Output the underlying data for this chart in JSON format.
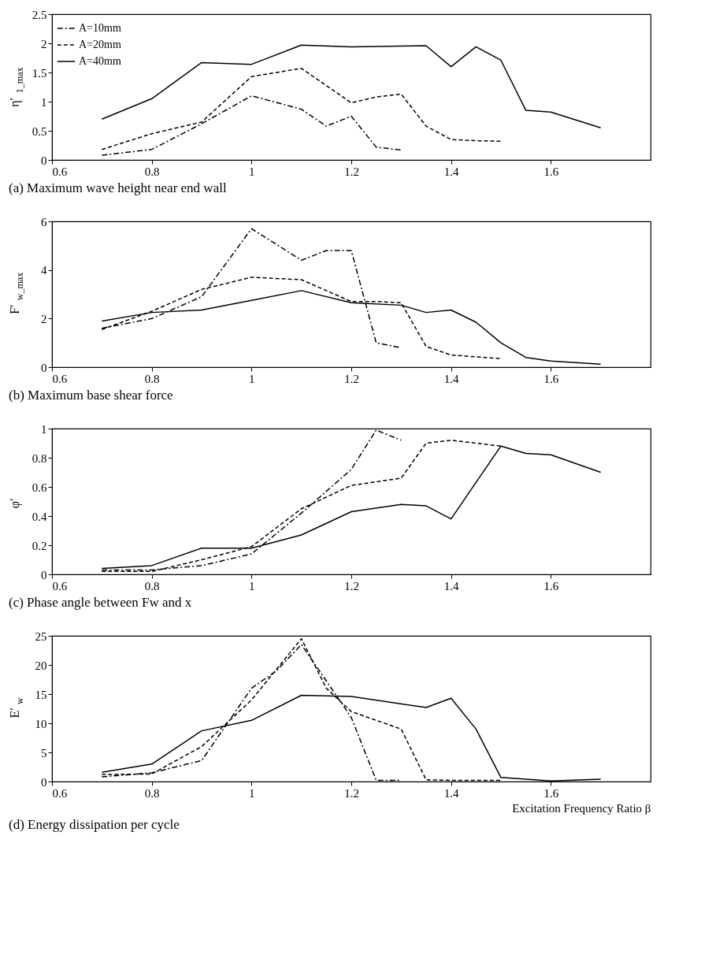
{
  "chart_data": [
    {
      "type": "line",
      "title": "(a) Maximum wave height near end wall",
      "ylabel": "η′$_{1_max}$",
      "xlim": [
        0.6,
        1.8
      ],
      "xticks": [
        0.6,
        0.8,
        1,
        1.2,
        1.4,
        1.6
      ],
      "ylim": [
        0,
        2.5
      ],
      "yticks": [
        0,
        0.5,
        1,
        1.5,
        2,
        2.5
      ],
      "legend": "top left",
      "grid": false,
      "series": [
        {
          "name": "A=10mm",
          "color": "#000000",
          "line_style": "dashdot",
          "x": [
            0.7,
            0.8,
            0.9,
            1.0,
            1.1,
            1.15,
            1.2,
            1.25,
            1.3
          ],
          "values": [
            0.08,
            0.18,
            0.62,
            1.1,
            0.87,
            0.58,
            0.75,
            0.22,
            0.17
          ]
        },
        {
          "name": "A=20mm",
          "color": "#000000",
          "line_style": "dashed",
          "x": [
            0.7,
            0.8,
            0.9,
            1.0,
            1.1,
            1.2,
            1.25,
            1.3,
            1.35,
            1.4,
            1.45,
            1.5
          ],
          "values": [
            0.18,
            0.45,
            0.65,
            1.43,
            1.57,
            0.98,
            1.08,
            1.13,
            0.58,
            0.35,
            0.33,
            0.32
          ]
        },
        {
          "name": "A=40mm",
          "color": "#000000",
          "line_style": "solid",
          "x": [
            0.7,
            0.8,
            0.9,
            1.0,
            1.1,
            1.2,
            1.35,
            1.4,
            1.45,
            1.5,
            1.55,
            1.6,
            1.7
          ],
          "values": [
            0.7,
            1.05,
            1.67,
            1.64,
            1.97,
            1.94,
            1.96,
            1.6,
            1.94,
            1.71,
            0.85,
            0.82,
            0.55
          ]
        }
      ]
    },
    {
      "type": "line",
      "title": "(b) Maximum base shear force",
      "ylabel": "F′$_{w_max}$",
      "xlim": [
        0.6,
        1.8
      ],
      "xticks": [
        0.6,
        0.8,
        1,
        1.2,
        1.4,
        1.6
      ],
      "ylim": [
        0,
        6
      ],
      "yticks": [
        0,
        2,
        4,
        6
      ],
      "grid": false,
      "series": [
        {
          "color": "#000000",
          "line_style": "dashdot",
          "x": [
            0.7,
            0.8,
            0.9,
            1.0,
            1.1,
            1.15,
            1.2,
            1.25,
            1.3
          ],
          "values": [
            1.6,
            2.0,
            2.9,
            5.7,
            4.4,
            4.8,
            4.8,
            1.0,
            0.8
          ]
        },
        {
          "color": "#000000",
          "line_style": "dashed",
          "x": [
            0.7,
            0.8,
            0.9,
            1.0,
            1.1,
            1.2,
            1.25,
            1.3,
            1.35,
            1.4,
            1.5
          ],
          "values": [
            1.55,
            2.3,
            3.2,
            3.7,
            3.6,
            2.7,
            2.7,
            2.65,
            0.85,
            0.5,
            0.35
          ]
        },
        {
          "color": "#000000",
          "line_style": "solid",
          "x": [
            0.7,
            0.8,
            0.9,
            1.0,
            1.1,
            1.2,
            1.3,
            1.35,
            1.4,
            1.45,
            1.5,
            1.55,
            1.6,
            1.7
          ],
          "values": [
            1.9,
            2.25,
            2.35,
            2.75,
            3.15,
            2.65,
            2.55,
            2.25,
            2.35,
            1.85,
            1.0,
            0.4,
            0.25,
            0.12
          ]
        }
      ]
    },
    {
      "type": "line",
      "title": "(c) Phase angle between Fw and x",
      "ylabel": "φ′",
      "xlim": [
        0.6,
        1.8
      ],
      "xticks": [
        0.6,
        0.8,
        1,
        1.2,
        1.4,
        1.6
      ],
      "ylim": [
        0,
        1
      ],
      "yticks": [
        0,
        0.2,
        0.4,
        0.6,
        0.8,
        1
      ],
      "grid": false,
      "series": [
        {
          "color": "#000000",
          "line_style": "dashdot",
          "x": [
            0.7,
            0.8,
            0.9,
            1.0,
            1.1,
            1.2,
            1.25,
            1.3
          ],
          "values": [
            0.03,
            0.03,
            0.06,
            0.14,
            0.42,
            0.72,
            0.99,
            0.92
          ]
        },
        {
          "color": "#000000",
          "line_style": "dashed",
          "x": [
            0.7,
            0.8,
            0.9,
            1.0,
            1.1,
            1.2,
            1.3,
            1.35,
            1.4,
            1.5
          ],
          "values": [
            0.02,
            0.02,
            0.1,
            0.19,
            0.45,
            0.61,
            0.66,
            0.9,
            0.92,
            0.88
          ]
        },
        {
          "color": "#000000",
          "line_style": "solid",
          "x": [
            0.7,
            0.8,
            0.9,
            1.0,
            1.1,
            1.2,
            1.3,
            1.35,
            1.4,
            1.5,
            1.55,
            1.6,
            1.7
          ],
          "values": [
            0.04,
            0.06,
            0.18,
            0.18,
            0.27,
            0.43,
            0.48,
            0.47,
            0.38,
            0.88,
            0.83,
            0.82,
            0.7
          ]
        }
      ]
    },
    {
      "type": "line",
      "title": "(d) Energy dissipation per cycle",
      "xlabel": "Excitation Frequency Ratio  β",
      "ylabel": "E′$_{w}$",
      "xlim": [
        0.6,
        1.8
      ],
      "xticks": [
        0.6,
        0.8,
        1,
        1.2,
        1.4,
        1.6
      ],
      "ylim": [
        0,
        25
      ],
      "yticks": [
        0,
        5,
        10,
        15,
        20,
        25
      ],
      "grid": false,
      "series": [
        {
          "color": "#000000",
          "line_style": "dashdot",
          "x": [
            0.7,
            0.8,
            0.9,
            1.0,
            1.05,
            1.1,
            1.2,
            1.25,
            1.3
          ],
          "values": [
            0.8,
            1.5,
            3.6,
            16,
            19,
            23.5,
            11,
            0.2,
            0.2
          ]
        },
        {
          "color": "#000000",
          "line_style": "dashed",
          "x": [
            0.7,
            0.8,
            0.9,
            1.0,
            1.1,
            1.15,
            1.2,
            1.3,
            1.35,
            1.4,
            1.5
          ],
          "values": [
            1.2,
            1.3,
            6,
            14,
            24.5,
            16,
            12,
            9,
            0.3,
            0.2,
            0.2
          ]
        },
        {
          "color": "#000000",
          "line_style": "solid",
          "x": [
            0.7,
            0.8,
            0.9,
            1.0,
            1.1,
            1.2,
            1.35,
            1.4,
            1.45,
            1.5,
            1.6,
            1.7
          ],
          "values": [
            1.6,
            3,
            8.7,
            10.5,
            14.8,
            14.6,
            12.7,
            14.3,
            9,
            0.7,
            0.1,
            0.4
          ]
        }
      ]
    }
  ]
}
